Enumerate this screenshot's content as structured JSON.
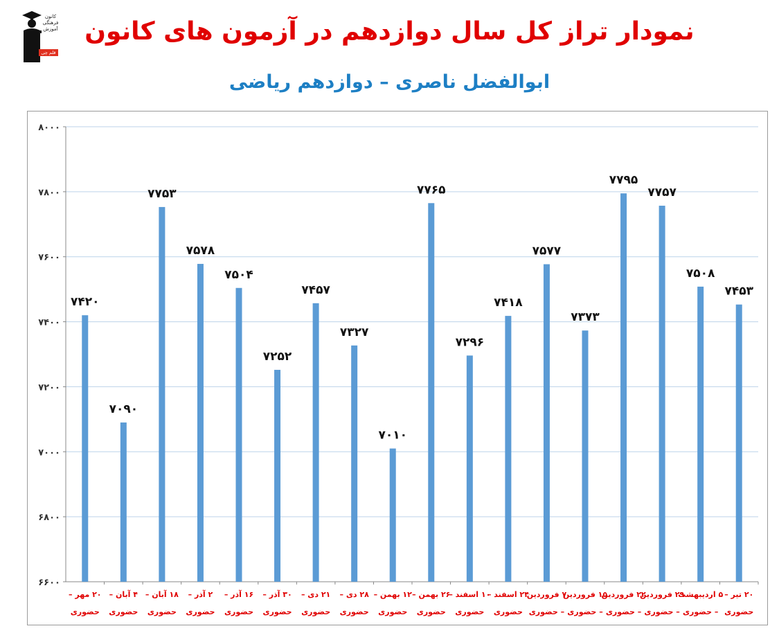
{
  "header": {
    "title": "نمودار تراز کل سال دوازدهم در آزمون های کانون",
    "subtitle": "ابوالفضل ناصری – دوازدهم ریاضی",
    "logo_text": "کانون فرهنگی آموزش",
    "logo_badge": "قلم چی"
  },
  "colors": {
    "bar": "#5b9bd5",
    "title": "#e00000",
    "subtitle": "#1d7fc4",
    "x_label": "#e00000",
    "gridline": "#bcd3ea"
  },
  "chart_data": {
    "type": "bar",
    "title": "",
    "xlabel": "",
    "ylabel": "",
    "ylim": [
      6600,
      8000
    ],
    "yticks": [
      6600,
      6800,
      7000,
      7200,
      7400,
      7600,
      7800,
      8000
    ],
    "ytick_labels": [
      "۶۶۰۰",
      "۶۸۰۰",
      "۷۰۰۰",
      "۷۲۰۰",
      "۷۴۰۰",
      "۷۶۰۰",
      "۷۸۰۰",
      "۸۰۰۰"
    ],
    "grid": true,
    "legend": "none",
    "categories": [
      [
        "۲۰ مهر –",
        "حضوری"
      ],
      [
        "۴ آبان –",
        "حضوری"
      ],
      [
        "۱۸ آبان –",
        "حضوری"
      ],
      [
        "۲ آذر –",
        "حضوری"
      ],
      [
        "۱۶ آذر –",
        "حضوری"
      ],
      [
        "۳۰ آذر –",
        "حضوری"
      ],
      [
        "۲۱ دی –",
        "حضوری"
      ],
      [
        "۲۸ دی –",
        "حضوری"
      ],
      [
        "۱۲ بهمن –",
        "حضوری"
      ],
      [
        "۲۶ بهمن –",
        "حضوری"
      ],
      [
        "۱۰ اسفند –",
        "حضوری"
      ],
      [
        "۲۴ اسفند –",
        "حضوری"
      ],
      [
        "۷ فروردین",
        "– حضوری"
      ],
      [
        "۱۵ فروردین",
        "– حضوری"
      ],
      [
        "۲۲ فروردین",
        "– حضوری"
      ],
      [
        "۲۹ فروردین",
        "– حضوری"
      ],
      [
        "۵ اردیبهشت",
        "– حضوری"
      ],
      [
        "۲۰ تیر –",
        "حضوری"
      ]
    ],
    "values": [
      7420,
      7090,
      7753,
      7578,
      7504,
      7252,
      7457,
      7327,
      7010,
      7765,
      7296,
      7418,
      7577,
      7373,
      7795,
      7757,
      7508,
      7453
    ],
    "value_labels": [
      "۷۴۲۰",
      "۷۰۹۰",
      "۷۷۵۳",
      "۷۵۷۸",
      "۷۵۰۴",
      "۷۲۵۲",
      "۷۴۵۷",
      "۷۳۲۷",
      "۷۰۱۰",
      "۷۷۶۵",
      "۷۲۹۶",
      "۷۴۱۸",
      "۷۵۷۷",
      "۷۳۷۳",
      "۷۷۹۵",
      "۷۷۵۷",
      "۷۵۰۸",
      "۷۴۵۳"
    ]
  }
}
